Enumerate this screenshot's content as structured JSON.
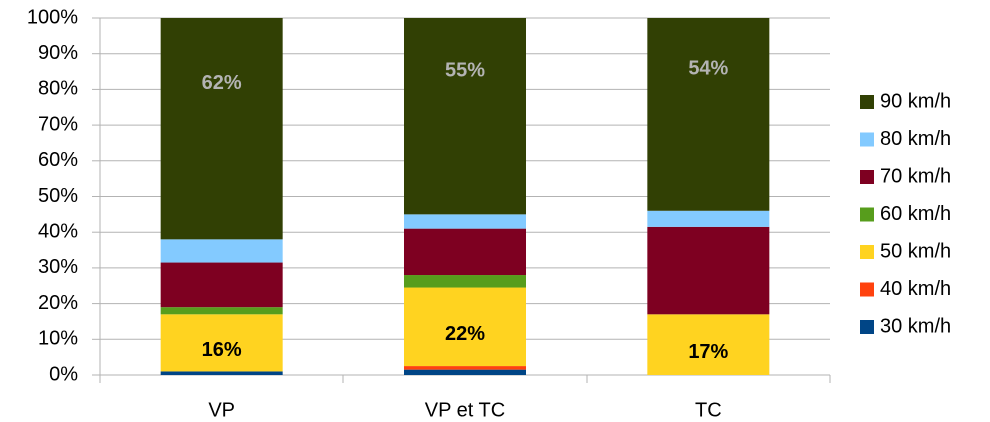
{
  "chart_data": {
    "type": "stacked_bar",
    "categories": [
      "VP",
      "VP et TC",
      "TC"
    ],
    "series": [
      {
        "name": "30 km/h",
        "color": "#004586",
        "values": [
          1,
          1.5,
          0
        ]
      },
      {
        "name": "40 km/h",
        "color": "#ff420e",
        "values": [
          0,
          1,
          0
        ]
      },
      {
        "name": "50 km/h",
        "color": "#ffd320",
        "values": [
          16,
          22,
          17
        ],
        "value_labels": [
          "16%",
          "22%",
          "17%"
        ]
      },
      {
        "name": "60 km/h",
        "color": "#579d1c",
        "values": [
          2,
          3.5,
          0
        ]
      },
      {
        "name": "70 km/h",
        "color": "#7e0021",
        "values": [
          12.5,
          13,
          24.5
        ]
      },
      {
        "name": "80 km/h",
        "color": "#83caff",
        "values": [
          6.5,
          4,
          4.5
        ]
      },
      {
        "name": "90 km/h",
        "color": "#314004",
        "values": [
          62,
          55,
          54
        ],
        "value_labels": [
          "62%",
          "55%",
          "54%"
        ]
      }
    ],
    "ylim": [
      0,
      100
    ],
    "yticks": [
      {
        "value": 0,
        "label": "0%"
      },
      {
        "value": 10,
        "label": "10%"
      },
      {
        "value": 20,
        "label": "20%"
      },
      {
        "value": 30,
        "label": "30%"
      },
      {
        "value": 40,
        "label": "40%"
      },
      {
        "value": 50,
        "label": "50%"
      },
      {
        "value": 60,
        "label": "60%"
      },
      {
        "value": 70,
        "label": "70%"
      },
      {
        "value": 80,
        "label": "80%"
      },
      {
        "value": 90,
        "label": "90%"
      },
      {
        "value": 100,
        "label": "100%"
      }
    ],
    "grid": true,
    "legend": "right"
  }
}
